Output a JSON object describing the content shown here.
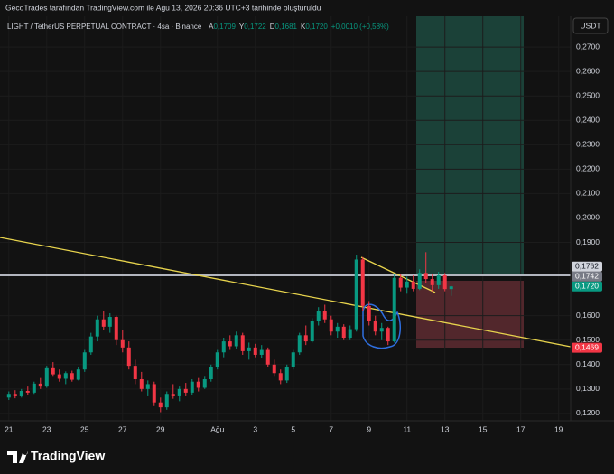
{
  "banner": "GecoTrades tarafından TradingView.com ile Ağu 13, 2026 20:36 UTC+3 tarihinde oluşturuldu",
  "header": {
    "symbol": "LIGHT / TetherUS PERPETUAL CONTRACT · 4sa · Binance",
    "legend": [
      {
        "key": "A",
        "value": "0,1709"
      },
      {
        "key": "Y",
        "value": "0,1722"
      },
      {
        "key": "D",
        "value": "0,1681"
      },
      {
        "key": "K",
        "value": "0,1720"
      }
    ],
    "change": "+0,0010 (+0,58%)"
  },
  "footer": {
    "brand": "TradingView"
  },
  "chart_data": {
    "type": "candlestick",
    "currency": "USDT",
    "up_color": "#089981",
    "down_color": "#f23645",
    "grid": true,
    "ylim": [
      0.117,
      0.2826
    ],
    "xlim": [
      -1.4,
      88.9
    ],
    "yticks": [
      {
        "value": 0.27,
        "label": "0,2700"
      },
      {
        "value": 0.26,
        "label": "0,2600"
      },
      {
        "value": 0.25,
        "label": "0,2500"
      },
      {
        "value": 0.24,
        "label": "0,2400"
      },
      {
        "value": 0.23,
        "label": "0,2300"
      },
      {
        "value": 0.22,
        "label": "0,2200"
      },
      {
        "value": 0.21,
        "label": "0,2100"
      },
      {
        "value": 0.2,
        "label": "0,2000"
      },
      {
        "value": 0.19,
        "label": "0,1900"
      },
      {
        "value": 0.16,
        "label": "0,1600"
      },
      {
        "value": 0.15,
        "label": "0,1500"
      },
      {
        "value": 0.14,
        "label": "0,1400"
      },
      {
        "value": 0.13,
        "label": "0,1300"
      },
      {
        "value": 0.12,
        "label": "0,1200"
      }
    ],
    "xticks": [
      {
        "value": 0,
        "label": "21"
      },
      {
        "value": 6,
        "label": "23"
      },
      {
        "value": 12,
        "label": "25"
      },
      {
        "value": 18,
        "label": "27"
      },
      {
        "value": 24,
        "label": "29"
      },
      {
        "value": 33,
        "label": "Ağu"
      },
      {
        "value": 39,
        "label": "3"
      },
      {
        "value": 45,
        "label": "5"
      },
      {
        "value": 51,
        "label": "7"
      },
      {
        "value": 57,
        "label": "9"
      },
      {
        "value": 63,
        "label": "11"
      },
      {
        "value": 69,
        "label": "13"
      },
      {
        "value": 75,
        "label": "15"
      },
      {
        "value": 81,
        "label": "17"
      },
      {
        "value": 87,
        "label": "19"
      }
    ],
    "price_labels": [
      {
        "value": 0.1762,
        "label": "0,1762",
        "color": "#d1d4dc",
        "text_color": "#131722"
      },
      {
        "value": 0.1742,
        "label": "0,1742",
        "color": "#787b86",
        "text_color": "#ffffff"
      },
      {
        "value": 0.172,
        "label": "0,1720",
        "color": "#089981",
        "text_color": "#ffffff"
      },
      {
        "value": 0.1469,
        "label": "0,1469",
        "color": "#f23645",
        "text_color": "#ffffff"
      }
    ],
    "ohlc": [
      [
        0.1265,
        0.129,
        0.1255,
        0.128
      ],
      [
        0.128,
        0.1295,
        0.1262,
        0.127
      ],
      [
        0.127,
        0.13,
        0.1265,
        0.1292
      ],
      [
        0.1292,
        0.131,
        0.1275,
        0.1285
      ],
      [
        0.1285,
        0.133,
        0.128,
        0.1322
      ],
      [
        0.1322,
        0.1345,
        0.13,
        0.131
      ],
      [
        0.131,
        0.1395,
        0.1305,
        0.1385
      ],
      [
        0.1385,
        0.141,
        0.135,
        0.136
      ],
      [
        0.136,
        0.138,
        0.133,
        0.1342
      ],
      [
        0.1342,
        0.1372,
        0.132,
        0.1365
      ],
      [
        0.1365,
        0.1375,
        0.133,
        0.1338
      ],
      [
        0.1338,
        0.139,
        0.1335,
        0.138
      ],
      [
        0.138,
        0.146,
        0.137,
        0.145
      ],
      [
        0.145,
        0.153,
        0.144,
        0.1515
      ],
      [
        0.1515,
        0.16,
        0.1495,
        0.1585
      ],
      [
        0.1585,
        0.162,
        0.154,
        0.1555
      ],
      [
        0.1555,
        0.161,
        0.153,
        0.1595
      ],
      [
        0.1595,
        0.16,
        0.148,
        0.15
      ],
      [
        0.15,
        0.154,
        0.145,
        0.147
      ],
      [
        0.147,
        0.1495,
        0.138,
        0.1395
      ],
      [
        0.1395,
        0.142,
        0.132,
        0.134
      ],
      [
        0.134,
        0.137,
        0.129,
        0.13
      ],
      [
        0.13,
        0.1335,
        0.127,
        0.132
      ],
      [
        0.132,
        0.133,
        0.123,
        0.1245
      ],
      [
        0.1245,
        0.1265,
        0.1205,
        0.1225
      ],
      [
        0.1225,
        0.129,
        0.1215,
        0.128
      ],
      [
        0.128,
        0.132,
        0.126,
        0.127
      ],
      [
        0.127,
        0.131,
        0.125,
        0.13
      ],
      [
        0.13,
        0.1325,
        0.127,
        0.1285
      ],
      [
        0.1285,
        0.134,
        0.1275,
        0.133
      ],
      [
        0.133,
        0.1345,
        0.129,
        0.1305
      ],
      [
        0.1305,
        0.135,
        0.13,
        0.134
      ],
      [
        0.134,
        0.14,
        0.133,
        0.139
      ],
      [
        0.139,
        0.146,
        0.138,
        0.145
      ],
      [
        0.145,
        0.151,
        0.143,
        0.1495
      ],
      [
        0.1495,
        0.152,
        0.146,
        0.1475
      ],
      [
        0.1475,
        0.1535,
        0.1465,
        0.152
      ],
      [
        0.152,
        0.153,
        0.144,
        0.1455
      ],
      [
        0.1455,
        0.149,
        0.142,
        0.147
      ],
      [
        0.147,
        0.1485,
        0.143,
        0.144
      ],
      [
        0.144,
        0.148,
        0.1425,
        0.146
      ],
      [
        0.146,
        0.147,
        0.139,
        0.14
      ],
      [
        0.14,
        0.142,
        0.135,
        0.1365
      ],
      [
        0.1365,
        0.138,
        0.132,
        0.1335
      ],
      [
        0.1335,
        0.14,
        0.1325,
        0.139
      ],
      [
        0.139,
        0.146,
        0.138,
        0.145
      ],
      [
        0.145,
        0.153,
        0.144,
        0.152
      ],
      [
        0.152,
        0.156,
        0.148,
        0.1495
      ],
      [
        0.1495,
        0.159,
        0.149,
        0.158
      ],
      [
        0.158,
        0.1635,
        0.156,
        0.162
      ],
      [
        0.162,
        0.1645,
        0.157,
        0.1585
      ],
      [
        0.1585,
        0.16,
        0.152,
        0.1535
      ],
      [
        0.1535,
        0.157,
        0.151,
        0.1555
      ],
      [
        0.1555,
        0.1565,
        0.15,
        0.151
      ],
      [
        0.151,
        0.156,
        0.15,
        0.1545
      ],
      [
        0.1545,
        0.185,
        0.1535,
        0.183
      ],
      [
        0.183,
        0.184,
        0.162,
        0.164
      ],
      [
        0.164,
        0.166,
        0.156,
        0.158
      ],
      [
        0.158,
        0.16,
        0.152,
        0.1535
      ],
      [
        0.1535,
        0.157,
        0.15,
        0.155
      ],
      [
        0.155,
        0.1555,
        0.148,
        0.1495
      ],
      [
        0.1495,
        0.177,
        0.149,
        0.1755
      ],
      [
        0.1755,
        0.177,
        0.17,
        0.1715
      ],
      [
        0.1715,
        0.176,
        0.169,
        0.174
      ],
      [
        0.174,
        0.1765,
        0.17,
        0.171
      ],
      [
        0.171,
        0.179,
        0.1705,
        0.1775
      ],
      [
        0.1775,
        0.186,
        0.1735,
        0.175
      ],
      [
        0.175,
        0.177,
        0.17,
        0.1725
      ],
      [
        0.1725,
        0.178,
        0.171,
        0.1765
      ],
      [
        0.1765,
        0.1775,
        0.17,
        0.1709
      ],
      [
        0.1709,
        0.1722,
        0.1681,
        0.172
      ]
    ]
  }
}
